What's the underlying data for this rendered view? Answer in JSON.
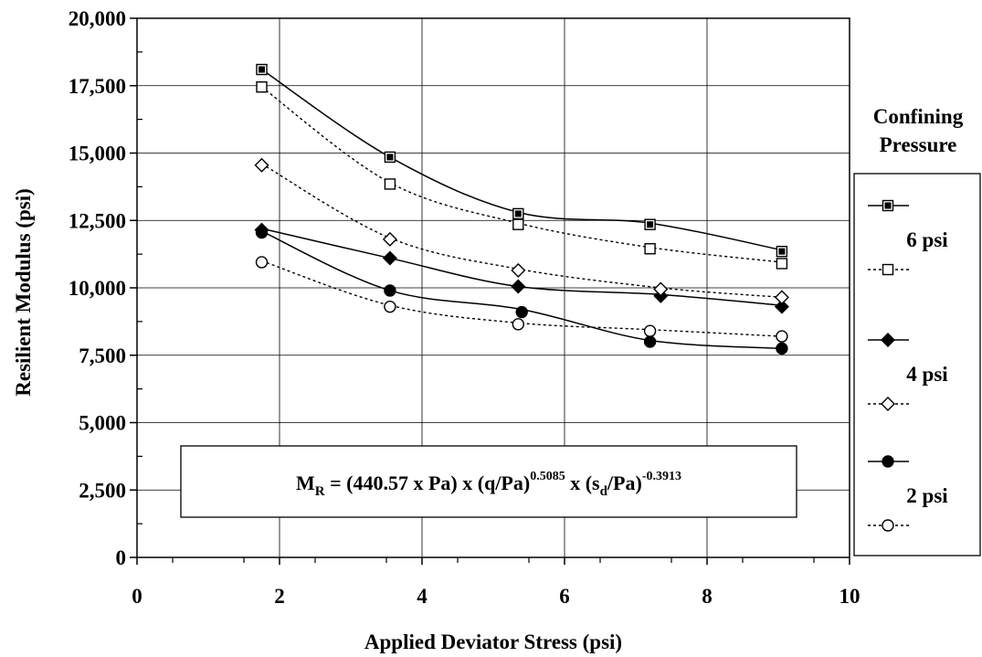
{
  "chart_data": {
    "type": "line",
    "xlabel": "Applied Deviator Stress (psi)",
    "ylabel": "Resilient Modulus (psi)",
    "xlim": [
      0,
      10
    ],
    "ylim": [
      0,
      20000
    ],
    "x_ticks": [
      "0",
      "2",
      "4",
      "6",
      "8",
      "10"
    ],
    "y_ticks": [
      "0",
      "2,500",
      "5,000",
      "7,500",
      "10,000",
      "12,500",
      "15,000",
      "17,500",
      "20,000"
    ],
    "grid": true,
    "legend_position": "right",
    "legend_title": [
      "Confining",
      "Pressure"
    ],
    "legend_groups": [
      "6 psi",
      "4 psi",
      "2 psi"
    ],
    "equation": {
      "lhs": "M",
      "lhs_sub": "R",
      "part1": " = (440.57 x Pa) x (q/Pa)",
      "exp1": "0.5085",
      "part2": " x (",
      "sigma": "s",
      "sigma_sub": "d",
      "part3": "/Pa)",
      "exp2": "-0.3913"
    },
    "series": [
      {
        "group": "6 psi",
        "style": "solid",
        "marker": "filled-square",
        "x": [
          1.75,
          3.55,
          5.35,
          7.2,
          9.05
        ],
        "y": [
          18100,
          14850,
          12750,
          12350,
          11350
        ],
        "curve_y": [
          18100,
          14850,
          12800,
          12400,
          11400
        ]
      },
      {
        "group": "6 psi",
        "style": "dotted",
        "marker": "open-square",
        "x": [
          1.75,
          3.55,
          5.35,
          7.2,
          9.05
        ],
        "y": [
          17450,
          13850,
          12350,
          11450,
          10900
        ],
        "curve_y": [
          17450,
          13900,
          12400,
          11500,
          10950
        ]
      },
      {
        "group": "4 psi",
        "style": "solid",
        "marker": "filled-diamond",
        "x": [
          1.75,
          3.55,
          5.35,
          7.35,
          9.05
        ],
        "y": [
          12150,
          11100,
          10050,
          9700,
          9300
        ],
        "curve_y": [
          12200,
          11100,
          10050,
          9750,
          9350
        ]
      },
      {
        "group": "4 psi",
        "style": "dotted",
        "marker": "open-diamond",
        "x": [
          1.75,
          3.55,
          5.35,
          7.35,
          9.05
        ],
        "y": [
          14550,
          11800,
          10650,
          9950,
          9650
        ],
        "curve_y": [
          14600,
          11850,
          10700,
          10000,
          9650
        ]
      },
      {
        "group": "2 psi",
        "style": "solid",
        "marker": "filled-circle",
        "x": [
          1.75,
          3.55,
          5.4,
          7.2,
          9.05
        ],
        "y": [
          12050,
          9900,
          9100,
          8000,
          7750
        ],
        "curve_y": [
          12100,
          9900,
          9200,
          8050,
          7750
        ]
      },
      {
        "group": "2 psi",
        "style": "dotted",
        "marker": "open-circle",
        "x": [
          1.75,
          3.55,
          5.35,
          7.2,
          9.05
        ],
        "y": [
          10950,
          9300,
          8650,
          8400,
          8200
        ],
        "curve_y": [
          11000,
          9350,
          8700,
          8450,
          8200
        ]
      }
    ]
  }
}
